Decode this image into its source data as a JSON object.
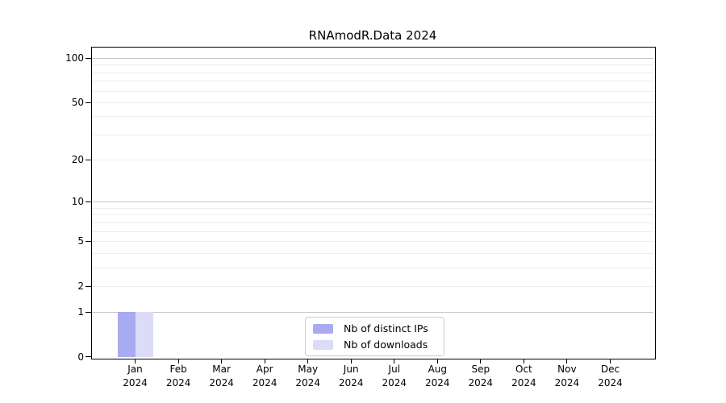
{
  "chart_data": {
    "type": "bar",
    "title": "RNAmodR.Data 2024",
    "yscale": "log1p",
    "categories": [
      {
        "month": "Jan",
        "year": "2024"
      },
      {
        "month": "Feb",
        "year": "2024"
      },
      {
        "month": "Mar",
        "year": "2024"
      },
      {
        "month": "Apr",
        "year": "2024"
      },
      {
        "month": "May",
        "year": "2024"
      },
      {
        "month": "Jun",
        "year": "2024"
      },
      {
        "month": "Jul",
        "year": "2024"
      },
      {
        "month": "Aug",
        "year": "2024"
      },
      {
        "month": "Sep",
        "year": "2024"
      },
      {
        "month": "Oct",
        "year": "2024"
      },
      {
        "month": "Nov",
        "year": "2024"
      },
      {
        "month": "Dec",
        "year": "2024"
      }
    ],
    "series": [
      {
        "name": "Nb of distinct IPs",
        "color": "#a9abf2",
        "values": [
          1,
          0,
          0,
          0,
          0,
          0,
          0,
          0,
          0,
          0,
          0,
          0
        ]
      },
      {
        "name": "Nb of downloads",
        "color": "#dcdcf8",
        "values": [
          1,
          0,
          0,
          0,
          0,
          0,
          0,
          0,
          0,
          0,
          0,
          0
        ]
      }
    ],
    "y_axis": {
      "tick_values": [
        0,
        1,
        2,
        5,
        10,
        20,
        50,
        100
      ],
      "tick_labels": [
        "0",
        "1",
        "2",
        "5",
        "10",
        "20",
        "50",
        "100"
      ],
      "decade_values": [
        1,
        10,
        100
      ],
      "minor_values": [
        3,
        4,
        6,
        7,
        8,
        9,
        30,
        40,
        60,
        70,
        80,
        90
      ]
    },
    "grid": true,
    "legend_position": "bottom-center"
  },
  "legend": {
    "entries": [
      "Nb of distinct IPs",
      "Nb of downloads"
    ]
  },
  "colors": {
    "background": "#ffffff",
    "axis": "#000000",
    "grid_major": "#c6c6c6",
    "grid_minor": "#ededed",
    "legend_border": "#cccccc",
    "bar_distinct_ips": "#a9abf2",
    "bar_downloads": "#dcdcf8"
  }
}
